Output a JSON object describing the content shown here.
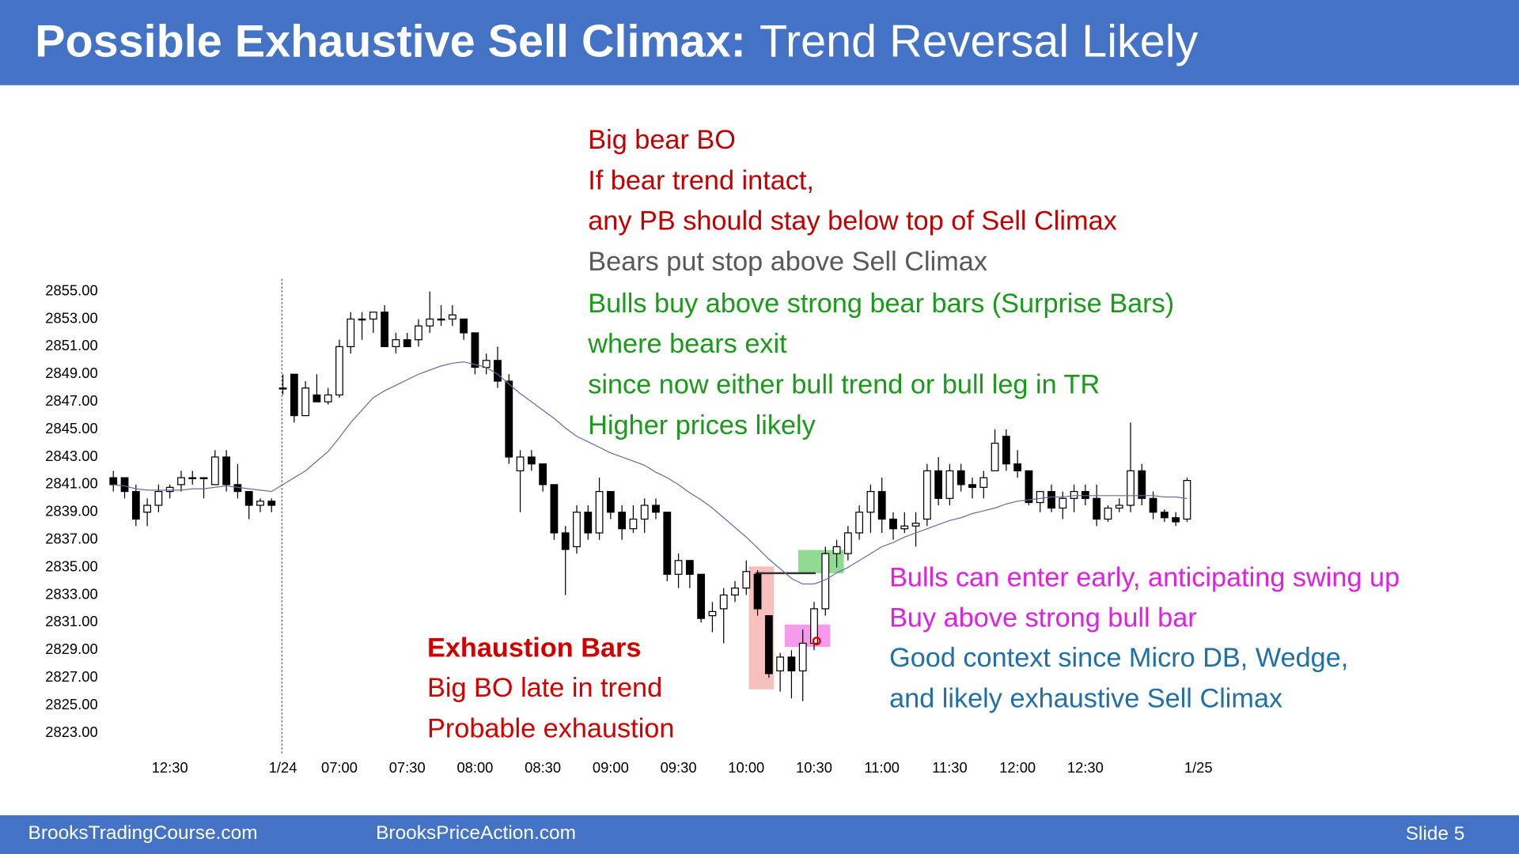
{
  "header": {
    "title_bold": "Possible Exhaustive Sell Climax:",
    "title_rest": "Trend Reversal Likely"
  },
  "chart_data": {
    "type": "candlestick",
    "categories": [
      null,
      null,
      null,
      null,
      null,
      "12:30",
      null,
      null,
      null,
      null,
      null,
      null,
      null,
      null,
      null,
      "1/24",
      null,
      null,
      null,
      null,
      "07:00",
      null,
      null,
      null,
      null,
      null,
      "07:30",
      null,
      null,
      null,
      null,
      null,
      "08:00",
      null,
      null,
      null,
      null,
      null,
      "08:30",
      null,
      null,
      null,
      null,
      null,
      "09:00",
      null,
      null,
      null,
      null,
      null,
      "09:30",
      null,
      null,
      null,
      null,
      null,
      "10:00",
      null,
      null,
      null,
      null,
      null,
      "10:30",
      null,
      null,
      null,
      null,
      null,
      "11:00",
      null,
      null,
      null,
      null,
      null,
      "11:30",
      null,
      null,
      null,
      null,
      null,
      "12:00",
      null,
      null,
      null,
      null,
      null,
      "12:30",
      null,
      null,
      null,
      null,
      null,
      null,
      null,
      null,
      null,
      "1/25"
    ],
    "open": [
      2841.5,
      2841.5,
      2840.5,
      2839,
      2839.5,
      2840.5,
      2841,
      2841.5,
      2841.5,
      2841,
      2843,
      2841,
      2840.5,
      2839.5,
      2839.8,
      2848,
      2849,
      2846,
      2847.5,
      2847,
      2847.5,
      2851,
      2853,
      2853,
      2853.5,
      2851,
      2851.5,
      2851.5,
      2852.5,
      2853,
      2853,
      2853,
      2852,
      2849.5,
      2850,
      2848.5,
      2842,
      2843,
      2842.5,
      2841,
      2837.5,
      2836.5,
      2839,
      2837.5,
      2840.5,
      2839,
      2837.8,
      2838.5,
      2839.5,
      2839,
      2834.5,
      2835.5,
      2834.5,
      2831.5,
      2832,
      2833,
      2833.5,
      2834.5,
      2831.5,
      2827.5,
      2828.5,
      2827.5,
      2829.5,
      2832,
      2836,
      2836,
      2837.5,
      2839,
      2840.5,
      2838.5,
      2837.8,
      2838,
      2838.5,
      2842,
      2840,
      2842,
      2841,
      2840.8,
      2842,
      2844.5,
      2842.5,
      2842,
      2839.7,
      2840.5,
      2839.3,
      2840,
      2840.5,
      2840,
      2838.5,
      2839.3,
      2839.5,
      2842,
      2840,
      2839,
      2838.6,
      2838.5,
      null
    ],
    "high": [
      2842,
      2841.5,
      2841,
      2840,
      2841,
      2841,
      2842,
      2842,
      2841.5,
      2843.5,
      2843.5,
      2842.5,
      2840.5,
      2840,
      2840,
      2849,
      2849,
      2848.5,
      2849,
      2848,
      2851.5,
      2853.5,
      2853.5,
      2853.5,
      2854,
      2852,
      2852,
      2853,
      2855,
      2854,
      2854,
      2853,
      2852,
      2850.5,
      2851,
      2849,
      2843.5,
      2843.5,
      2842.5,
      2841,
      2838,
      2839.5,
      2839.5,
      2841.5,
      2840.5,
      2839.5,
      2839.5,
      2840,
      2840,
      2839,
      2836,
      2835.5,
      2834.5,
      2832.5,
      2833.5,
      2834,
      2835.5,
      2834.8,
      2831.5,
      2828.8,
      2829,
      2830.5,
      2832.5,
      2836.5,
      2837,
      2838,
      2839.5,
      2841,
      2841.5,
      2839,
      2839,
      2839,
      2842.5,
      2843,
      2842.5,
      2842.5,
      2841.5,
      2842,
      2845,
      2845,
      2843.5,
      2842,
      2840.5,
      2841,
      2840.5,
      2841,
      2841,
      2841,
      2839.5,
      2840,
      2845.5,
      2842.5,
      2840.5,
      2839.2,
      2839,
      2841.5,
      null
    ],
    "low": [
      2840.5,
      2840,
      2838,
      2838,
      2839,
      2840,
      2840.5,
      2841,
      2840,
      2841,
      2840.5,
      2840,
      2838.5,
      2839,
      2839,
      2847.5,
      2845.5,
      2846,
      2847,
      2846.8,
      2847.3,
      2850.5,
      2851.5,
      2852,
      2851,
      2850.5,
      2851,
      2851,
      2852,
      2852.5,
      2852.5,
      2851.5,
      2849,
      2849,
      2848,
      2842.5,
      2839,
      2842,
      2840.5,
      2837,
      2833,
      2836,
      2837,
      2837,
      2838.5,
      2837,
      2837.5,
      2837.5,
      2838.5,
      2834,
      2833.5,
      2833.5,
      2831,
      2830.3,
      2829.5,
      2832.5,
      2833,
      2831.5,
      2827,
      2826,
      2825.5,
      2825.3,
      2829,
      2831.5,
      2835,
      2835.5,
      2837,
      2837.5,
      2837.5,
      2837,
      2837.5,
      2836.5,
      2838,
      2839.5,
      2839.5,
      2840.5,
      2840,
      2840,
      2842,
      2842,
      2841.5,
      2839.5,
      2839,
      2839,
      2838.5,
      2839,
      2839.5,
      2838,
      2838.3,
      2839,
      2839,
      2839.5,
      2838.5,
      2838.3,
      2838,
      2838.3,
      null
    ],
    "close": [
      2841,
      2840.5,
      2838.5,
      2839.5,
      2840.5,
      2840.8,
      2841.5,
      2841.5,
      2841.5,
      2843,
      2841,
      2840.5,
      2839.5,
      2839.8,
      2839.5,
      2848,
      2846,
      2848,
      2847,
      2847.5,
      2851,
      2853,
      2853,
      2853.5,
      2851,
      2851.5,
      2851,
      2852.5,
      2853,
      2853,
      2853.3,
      2852,
      2849.5,
      2850,
      2848.5,
      2843,
      2843,
      2842.5,
      2841,
      2837.5,
      2836.3,
      2839,
      2837.5,
      2840.5,
      2839,
      2837.8,
      2838.5,
      2839.5,
      2839,
      2834.5,
      2835.5,
      2834.5,
      2831.3,
      2831.8,
      2833,
      2833.5,
      2834.7,
      2832,
      2827.3,
      2828.5,
      2827.5,
      2829.5,
      2832,
      2836,
      2836.5,
      2837.5,
      2839,
      2840.5,
      2838.5,
      2837.8,
      2838,
      2838.2,
      2842,
      2840,
      2842,
      2841,
      2840.8,
      2841.5,
      2844,
      2842.5,
      2842,
      2839.7,
      2840.5,
      2839.3,
      2840,
      2840.5,
      2840,
      2838.5,
      2839.3,
      2839.5,
      2842,
      2840,
      2839,
      2838.6,
      2838.3,
      2841.3,
      null
    ],
    "moving_average": {
      "color": "#6a6aa8",
      "values": [
        2841.0,
        2840.9,
        2840.7,
        2840.6,
        2840.6,
        2840.6,
        2840.6,
        2840.7,
        2840.7,
        2840.8,
        2840.9,
        2840.8,
        2840.7,
        2840.6,
        2840.5,
        2841.0,
        2841.5,
        2842.0,
        2842.7,
        2843.4,
        2844.4,
        2845.5,
        2846.4,
        2847.3,
        2847.8,
        2848.2,
        2848.6,
        2849.0,
        2849.3,
        2849.6,
        2849.8,
        2849.9,
        2849.7,
        2849.5,
        2849.0,
        2848.3,
        2847.6,
        2847.0,
        2846.4,
        2845.8,
        2845.1,
        2844.5,
        2844.1,
        2843.7,
        2843.3,
        2843.0,
        2842.7,
        2842.4,
        2841.9,
        2841.5,
        2841.0,
        2840.4,
        2839.9,
        2839.3,
        2838.6,
        2837.9,
        2837.2,
        2836.4,
        2835.6,
        2834.9,
        2834.2,
        2833.8,
        2833.8,
        2834.1,
        2834.6,
        2835.0,
        2835.5,
        2836.0,
        2836.5,
        2836.8,
        2837.2,
        2837.5,
        2837.8,
        2838.1,
        2838.4,
        2838.6,
        2838.9,
        2839.1,
        2839.3,
        2839.6,
        2839.8,
        2839.9,
        2840.0,
        2840.1,
        2840.1,
        2840.2,
        2840.2,
        2840.2,
        2840.2,
        2840.2,
        2840.2,
        2840.2,
        2840.2,
        2840.1,
        2840.1,
        2840.0,
        null
      ]
    },
    "up_color": "#ffffff",
    "down_color": "#000000",
    "outline_color": "#000000",
    "ylim": [
      2823,
      2855
    ],
    "yticks": [
      {
        "value": 2855,
        "label": "2855.00"
      },
      {
        "value": 2853,
        "label": "2853.00"
      },
      {
        "value": 2851,
        "label": "2851.00"
      },
      {
        "value": 2849,
        "label": "2849.00"
      },
      {
        "value": 2847,
        "label": "2847.00"
      },
      {
        "value": 2845,
        "label": "2845.00"
      },
      {
        "value": 2843,
        "label": "2843.00"
      },
      {
        "value": 2841,
        "label": "2841.00"
      },
      {
        "value": 2839,
        "label": "2839.00"
      },
      {
        "value": 2837,
        "label": "2837.00"
      },
      {
        "value": 2835,
        "label": "2835.00"
      },
      {
        "value": 2833,
        "label": "2833.00"
      },
      {
        "value": 2831,
        "label": "2831.00"
      },
      {
        "value": 2829,
        "label": "2829.00"
      },
      {
        "value": 2827,
        "label": "2827.00"
      },
      {
        "value": 2825,
        "label": "2825.00"
      },
      {
        "value": 2823,
        "label": "2823.00"
      }
    ],
    "grid": false
  },
  "annotations": [
    {
      "lines": [
        "Big bear BO",
        "If bear trend intact,",
        "any PB should stay below top of Sell Climax"
      ],
      "color": "#c00000",
      "bold": false
    },
    {
      "lines": [
        "Bears put stop above Sell Climax"
      ],
      "color": "#595959",
      "bold": false
    },
    {
      "lines": [
        "Bulls buy above strong bear bars (Surprise Bars)",
        "where bears exit",
        "since now either bull trend or bull leg in TR",
        "Higher prices likely"
      ],
      "color": "#1a9a1a",
      "bold": false
    },
    {
      "lines": [
        "Exhaustion Bars"
      ],
      "color": "#d00000",
      "bold": true
    },
    {
      "lines": [
        "Big BO late in trend",
        "Probable exhaustion"
      ],
      "color": "#d00000",
      "bold": false
    },
    {
      "lines": [
        "Bulls can enter early, anticipating swing up",
        "Buy above strong bull bar"
      ],
      "color": "#e020e0",
      "bold": false
    },
    {
      "lines": [
        "Good context since Micro DB, Wedge,",
        "and likely exhaustive Sell Climax"
      ],
      "color": "#1f6fa8",
      "bold": false
    }
  ],
  "footer": {
    "left": "BrooksTradingCourse.com",
    "middle": "BrooksPriceAction.com",
    "slide": "Slide 5"
  }
}
